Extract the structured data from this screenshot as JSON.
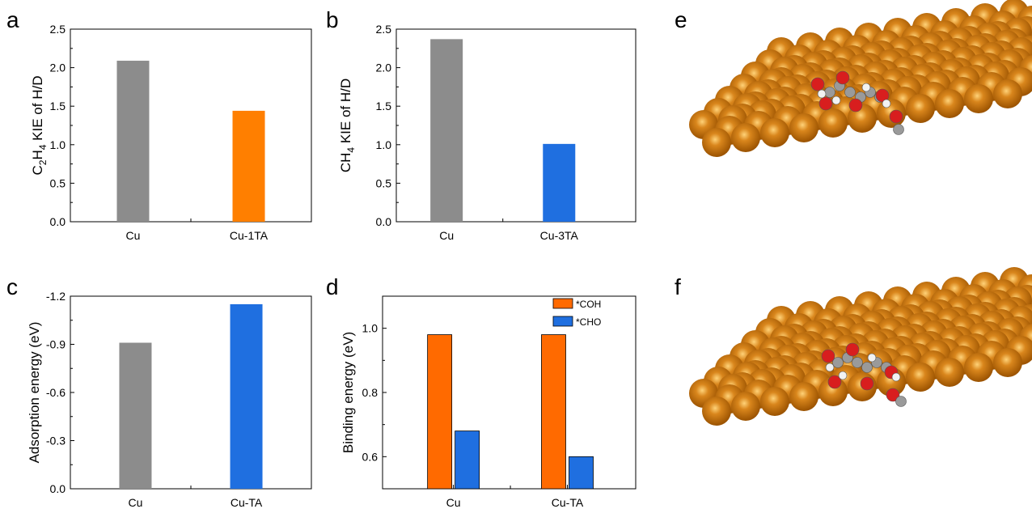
{
  "colors": {
    "gray": "#8c8c8c",
    "orange": "#ff7f00",
    "orange_dark": "#ff6a00",
    "blue": "#1f6fe0",
    "copper": "#d9861c",
    "oxygen": "#d81e1e",
    "carbon": "#9a9a9a",
    "hydrogen": "#f2f2f2"
  },
  "panels": {
    "a": "a",
    "b": "b",
    "c": "c",
    "d": "d",
    "e": "e",
    "f": "f"
  },
  "chart_data": [
    {
      "panel": "a",
      "type": "bar",
      "categories": [
        "Cu",
        "Cu-1TA"
      ],
      "values": [
        2.09,
        1.44
      ],
      "bar_colors": [
        "#8c8c8c",
        "#ff7f00"
      ],
      "ylabel_main": "C",
      "ylabel_parts": [
        {
          "t": "C",
          "sub": false
        },
        {
          "t": "2",
          "sub": true
        },
        {
          "t": "H",
          "sub": false
        },
        {
          "t": "4",
          "sub": true
        },
        {
          "t": " KIE of H/D",
          "sub": false
        }
      ],
      "ylim": [
        0,
        2.5
      ],
      "yticks": [
        "0.0",
        "0.5",
        "1.0",
        "1.5",
        "2.0",
        "2.5"
      ],
      "ytick_values": [
        0,
        0.5,
        1.0,
        1.5,
        2.0,
        2.5
      ],
      "grid": false
    },
    {
      "panel": "b",
      "type": "bar",
      "categories": [
        "Cu",
        "Cu-3TA"
      ],
      "values": [
        2.37,
        1.01
      ],
      "bar_colors": [
        "#8c8c8c",
        "#1f6fe0"
      ],
      "ylabel_parts": [
        {
          "t": "CH",
          "sub": false
        },
        {
          "t": "4",
          "sub": true
        },
        {
          "t": " KIE of H/D",
          "sub": false
        }
      ],
      "ylim": [
        0,
        2.5
      ],
      "yticks": [
        "0.0",
        "0.5",
        "1.0",
        "1.5",
        "2.0",
        "2.5"
      ],
      "ytick_values": [
        0,
        0.5,
        1.0,
        1.5,
        2.0,
        2.5
      ],
      "grid": false
    },
    {
      "panel": "c",
      "type": "bar",
      "categories": [
        "Cu",
        "Cu-TA"
      ],
      "values": [
        -0.91,
        -1.15
      ],
      "bar_colors": [
        "#8c8c8c",
        "#1f6fe0"
      ],
      "ylabel_parts": [
        {
          "t": "Adsorption energy (eV)",
          "sub": false
        }
      ],
      "ylim": [
        0,
        -1.2
      ],
      "y_inverted": true,
      "yticks": [
        "0.0",
        "-0.3",
        "-0.6",
        "-0.9",
        "-1.2"
      ],
      "ytick_values": [
        0,
        -0.3,
        -0.6,
        -0.9,
        -1.2
      ],
      "grid": false
    },
    {
      "panel": "d",
      "type": "bar",
      "categories": [
        "Cu",
        "Cu-TA"
      ],
      "series": [
        {
          "name": "*COH",
          "values": [
            0.98,
            0.98
          ],
          "color": "#ff6a00"
        },
        {
          "name": "*CHO",
          "values": [
            0.68,
            0.6
          ],
          "color": "#1f6fe0"
        }
      ],
      "ylabel_parts": [
        {
          "t": "Binding energy (eV)",
          "sub": false
        }
      ],
      "ylim": [
        0.5,
        1.1
      ],
      "yticks": [
        "0.6",
        "0.8",
        "1.0"
      ],
      "ytick_values": [
        0.6,
        0.8,
        1.0
      ],
      "legend": "top-right",
      "grid": false
    }
  ]
}
